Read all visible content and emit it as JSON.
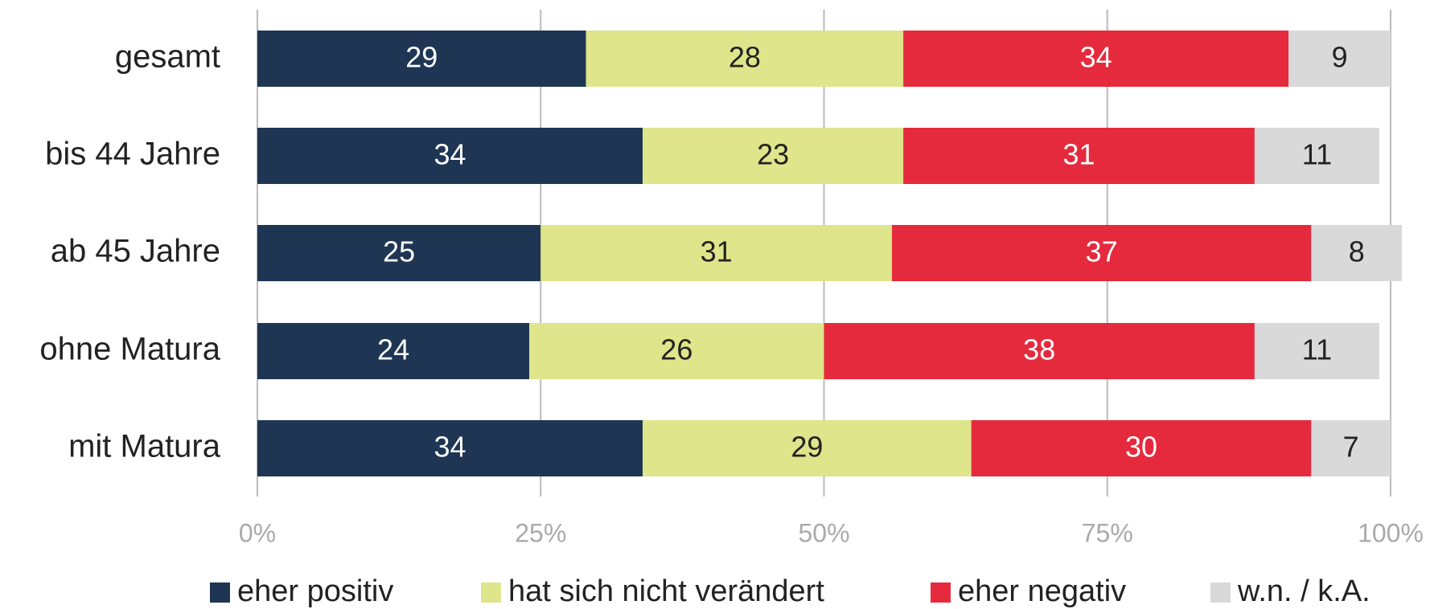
{
  "chart_data": {
    "type": "stacked-bar-horizontal",
    "categories": [
      "gesamt",
      "bis 44 Jahre",
      "ab 45 Jahre",
      "ohne Matura",
      "mit Matura"
    ],
    "series": [
      {
        "name": "eher positiv",
        "color": "#1e3654",
        "label_color": "#ffffff",
        "values": [
          29,
          34,
          25,
          24,
          34
        ]
      },
      {
        "name": "hat sich nicht verändert",
        "color": "#dfe58a",
        "label_color": "#222222",
        "values": [
          28,
          23,
          31,
          26,
          29
        ]
      },
      {
        "name": "eher negativ",
        "color": "#e52a3d",
        "label_color": "#ffffff",
        "values": [
          34,
          31,
          37,
          38,
          30
        ]
      },
      {
        "name": "w.n. / k.A.",
        "color": "#d9d9d9",
        "label_color": "#222222",
        "values": [
          9,
          11,
          8,
          11,
          7
        ]
      }
    ],
    "xlim": [
      0,
      100
    ],
    "xticks": [
      {
        "value": 0,
        "label": "0%"
      },
      {
        "value": 25,
        "label": "25%"
      },
      {
        "value": 50,
        "label": "50%"
      },
      {
        "value": 75,
        "label": "75%"
      },
      {
        "value": 100,
        "label": "100%"
      }
    ],
    "grid": true
  }
}
